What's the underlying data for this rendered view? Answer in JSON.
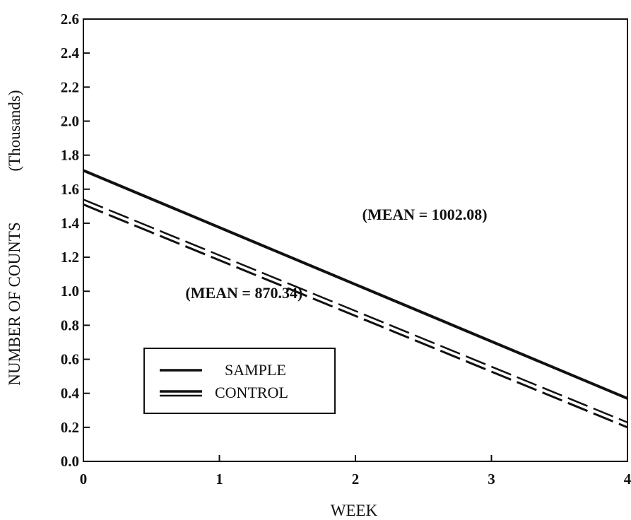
{
  "chart_data": {
    "type": "line",
    "title": "",
    "xlabel": "WEEK",
    "ylabel": "NUMBER OF COUNTS",
    "ylabel_unit": "(Thousands)",
    "xlim": [
      0,
      4
    ],
    "ylim": [
      0.0,
      2.6
    ],
    "x_ticks": [
      "0",
      "1",
      "2",
      "3",
      "4"
    ],
    "y_ticks": [
      "0.0",
      "0.2",
      "0.4",
      "0.6",
      "0.8",
      "1.0",
      "1.2",
      "1.4",
      "1.6",
      "1.8",
      "2.0",
      "2.2",
      "2.4",
      "2.6"
    ],
    "grid": false,
    "legend_position": "bottom-left",
    "series": [
      {
        "name": "SAMPLE",
        "style": "solid",
        "x": [
          0,
          4
        ],
        "y": [
          1.71,
          0.37
        ]
      },
      {
        "name": "CONTROL",
        "style": "dashed",
        "x": [
          0,
          4
        ],
        "y": [
          1.51,
          0.2
        ]
      }
    ],
    "annotations": [
      {
        "text": "(MEAN  =  1002.08)",
        "series": "SAMPLE",
        "x": 2.05,
        "y": 1.42
      },
      {
        "text": "(MEAN = 870.34)",
        "series": "CONTROL",
        "x": 0.75,
        "y": 0.96
      }
    ],
    "colors": {
      "line": "#111111",
      "background": "#ffffff"
    }
  }
}
